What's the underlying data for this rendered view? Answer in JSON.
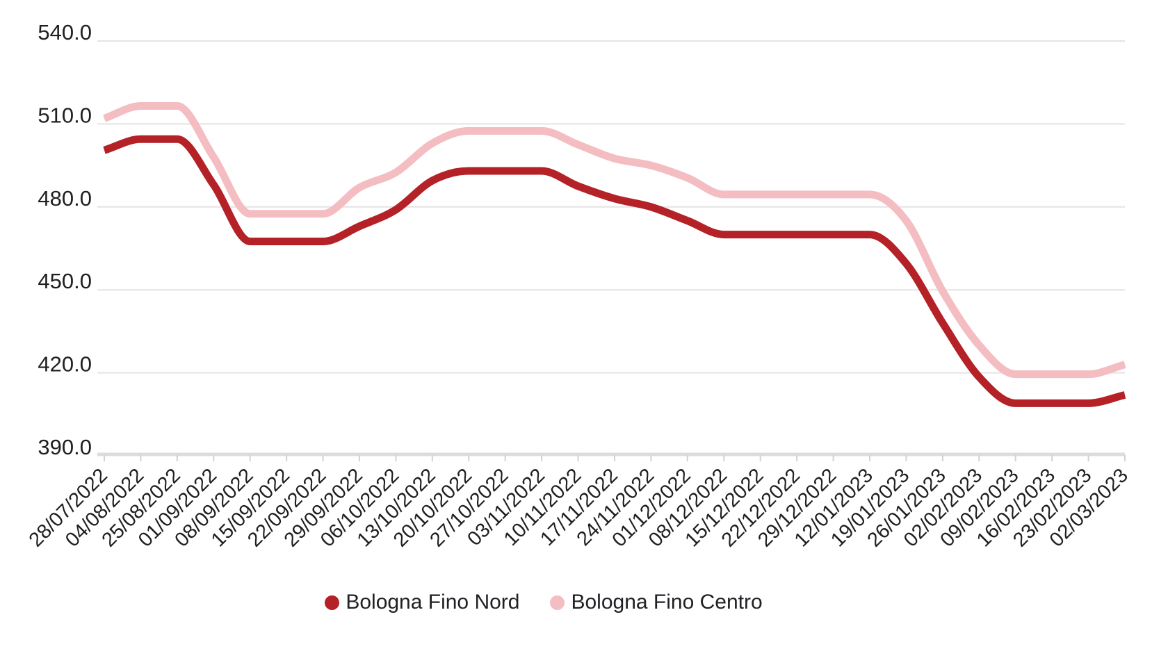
{
  "chart_data": {
    "type": "line",
    "x": [
      "28/07/2022",
      "04/08/2022",
      "25/08/2022",
      "01/09/2022",
      "08/09/2022",
      "15/09/2022",
      "22/09/2022",
      "29/09/2022",
      "06/10/2022",
      "13/10/2022",
      "20/10/2022",
      "27/10/2022",
      "03/11/2022",
      "10/11/2022",
      "17/11/2022",
      "24/11/2022",
      "01/12/2022",
      "08/12/2022",
      "15/12/2022",
      "22/12/2022",
      "29/12/2022",
      "12/01/2023",
      "19/01/2023",
      "26/01/2023",
      "02/02/2023",
      "09/02/2023",
      "16/02/2023",
      "23/02/2023",
      "02/03/2023"
    ],
    "series": [
      {
        "name": "Bologna Fino Nord",
        "color": "#b42127",
        "values": [
          500.5,
          504.5,
          504.5,
          488,
          467.5,
          467.5,
          467.5,
          473,
          479,
          489.5,
          493,
          493,
          493,
          487.5,
          483,
          480,
          475,
          470,
          470,
          470,
          470,
          470,
          459.5,
          438,
          418.5,
          409,
          409,
          409,
          412
        ]
      },
      {
        "name": "Bologna Fino Centro",
        "color": "#f4bdc1",
        "values": [
          512,
          516.5,
          516.5,
          498,
          477.5,
          477.5,
          477.5,
          487,
          492.5,
          503,
          507.5,
          507.5,
          507.5,
          502.5,
          497.5,
          495,
          490.5,
          484.5,
          484.5,
          484.5,
          484.5,
          484.5,
          475,
          449.5,
          430,
          419.5,
          419.5,
          419.5,
          423
        ]
      }
    ],
    "ylim": [
      390,
      540
    ],
    "yticks": [
      "390.0",
      "420.0",
      "450.0",
      "480.0",
      "510.0",
      "540.0"
    ],
    "grid": true,
    "legend_position": "bottom-center",
    "line_width": 11,
    "colors": {
      "grid": "#e4e4e4",
      "axis_baseline": "#dcdcdc",
      "tick": "#d2d2d2",
      "text": "#1f1f1f",
      "background": "#ffffff"
    }
  }
}
